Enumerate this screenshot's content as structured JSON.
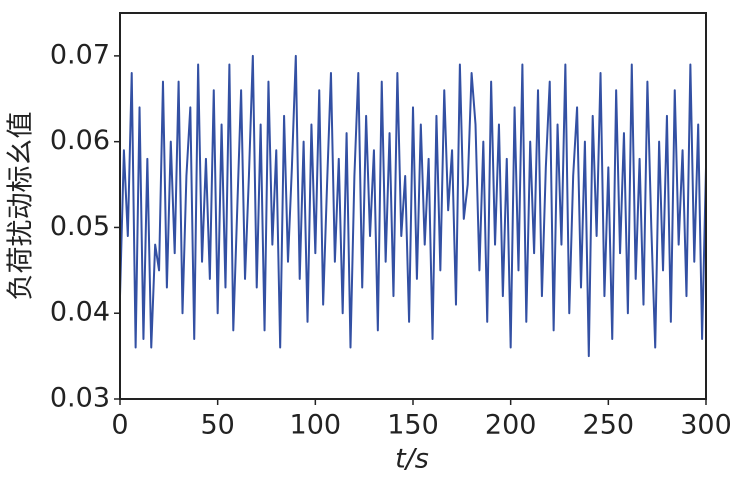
{
  "chart_data": {
    "type": "line",
    "xlabel": "t/s",
    "ylabel": "负荷扰动标幺值",
    "x": [
      0,
      2,
      4,
      6,
      8,
      10,
      12,
      14,
      16,
      18,
      20,
      22,
      24,
      26,
      28,
      30,
      32,
      34,
      36,
      38,
      40,
      42,
      44,
      46,
      48,
      50,
      52,
      54,
      56,
      58,
      60,
      62,
      64,
      66,
      68,
      70,
      72,
      74,
      76,
      78,
      80,
      82,
      84,
      86,
      88,
      90,
      92,
      94,
      96,
      98,
      100,
      102,
      104,
      106,
      108,
      110,
      112,
      114,
      116,
      118,
      120,
      122,
      124,
      126,
      128,
      130,
      132,
      134,
      136,
      138,
      140,
      142,
      144,
      146,
      148,
      150,
      152,
      154,
      156,
      158,
      160,
      162,
      164,
      166,
      168,
      170,
      172,
      174,
      176,
      178,
      180,
      182,
      184,
      186,
      188,
      190,
      192,
      194,
      196,
      198,
      200,
      202,
      204,
      206,
      208,
      210,
      212,
      214,
      216,
      218,
      220,
      222,
      224,
      226,
      228,
      230,
      232,
      234,
      236,
      238,
      240,
      242,
      244,
      246,
      248,
      250,
      252,
      254,
      256,
      258,
      260,
      262,
      264,
      266,
      268,
      270,
      272,
      274,
      276,
      278,
      280,
      282,
      284,
      286,
      288,
      290,
      292,
      294,
      296,
      298,
      300
    ],
    "series": [
      {
        "color": "#3350a3",
        "values": [
          0.042,
          0.059,
          0.049,
          0.068,
          0.036,
          0.064,
          0.037,
          0.058,
          0.036,
          0.048,
          0.045,
          0.067,
          0.043,
          0.06,
          0.047,
          0.067,
          0.04,
          0.056,
          0.064,
          0.037,
          0.069,
          0.046,
          0.058,
          0.044,
          0.066,
          0.04,
          0.062,
          0.043,
          0.069,
          0.038,
          0.052,
          0.066,
          0.044,
          0.056,
          0.07,
          0.043,
          0.062,
          0.038,
          0.067,
          0.048,
          0.059,
          0.036,
          0.063,
          0.046,
          0.057,
          0.07,
          0.044,
          0.06,
          0.039,
          0.062,
          0.047,
          0.066,
          0.041,
          0.055,
          0.068,
          0.046,
          0.058,
          0.04,
          0.061,
          0.036,
          0.056,
          0.068,
          0.043,
          0.063,
          0.049,
          0.059,
          0.038,
          0.067,
          0.046,
          0.061,
          0.042,
          0.068,
          0.049,
          0.056,
          0.039,
          0.064,
          0.044,
          0.062,
          0.048,
          0.058,
          0.037,
          0.063,
          0.045,
          0.066,
          0.052,
          0.059,
          0.041,
          0.069,
          0.051,
          0.055,
          0.068,
          0.062,
          0.045,
          0.06,
          0.039,
          0.067,
          0.048,
          0.062,
          0.042,
          0.058,
          0.036,
          0.064,
          0.045,
          0.069,
          0.039,
          0.06,
          0.047,
          0.066,
          0.042,
          0.057,
          0.067,
          0.038,
          0.062,
          0.048,
          0.069,
          0.04,
          0.056,
          0.064,
          0.043,
          0.06,
          0.035,
          0.063,
          0.049,
          0.068,
          0.042,
          0.057,
          0.037,
          0.066,
          0.047,
          0.061,
          0.04,
          0.069,
          0.044,
          0.058,
          0.041,
          0.067,
          0.05,
          0.036,
          0.06,
          0.045,
          0.063,
          0.039,
          0.066,
          0.048,
          0.059,
          0.042,
          0.069,
          0.046,
          0.062,
          0.037,
          0.057
        ]
      }
    ],
    "xlim": [
      0,
      300
    ],
    "xticks": [
      0,
      50,
      100,
      150,
      200,
      250,
      300
    ],
    "ylim": [
      0.03,
      0.075
    ],
    "yticks": [
      {
        "value": 0.03,
        "label": "0.03"
      },
      0.04,
      0.05,
      0.06,
      0.07
    ]
  }
}
